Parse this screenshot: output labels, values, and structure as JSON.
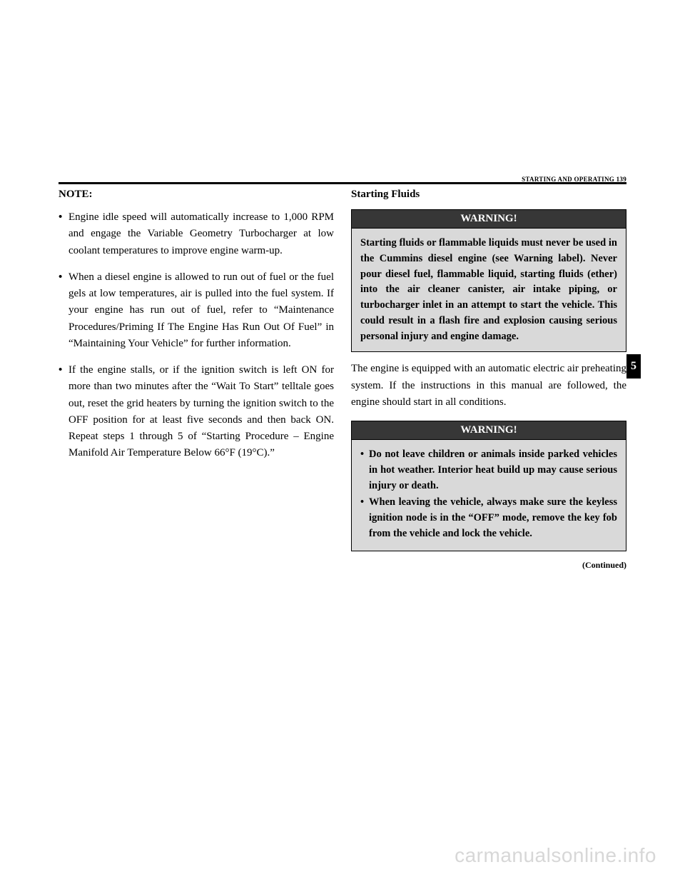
{
  "header": {
    "section_title": "STARTING AND OPERATING   139"
  },
  "tab": {
    "number": "5"
  },
  "left_column": {
    "note_label": "NOTE:",
    "bullets": [
      "Engine idle speed will automatically increase to 1,000 RPM and engage the Variable Geometry Turbocharger at low coolant temperatures to improve engine warm-up.",
      "When a diesel engine is allowed to run out of fuel or the fuel gels at low temperatures, air is pulled into the fuel system. If your engine has run out of fuel, refer to “Maintenance Procedures/Priming If The Engine Has Run Out Of Fuel” in “Maintaining Your Vehicle” for further information.",
      "If the engine stalls, or if the ignition switch is left ON for more than two minutes after the “Wait To Start” telltale goes out, reset the grid heaters by turning the ignition switch to the OFF position for at least five seconds and then back ON. Repeat steps 1 through 5 of “Starting Procedure – Engine Manifold Air Temperature Below 66°F (19°C).”"
    ]
  },
  "right_column": {
    "heading": "Starting Fluids",
    "warning1": {
      "title": "WARNING!",
      "body": "Starting fluids or flammable liquids must never be used in the Cummins diesel engine (see Warning label). Never pour diesel fuel, flammable liquid, starting fluids (ether) into the air cleaner canister, air intake piping, or turbocharger inlet in an attempt to start the vehicle. This could result in a flash fire and explosion causing serious personal injury and engine damage."
    },
    "body_text": "The engine is equipped with an automatic electric air preheating system. If the instructions in this manual are followed, the engine should start in all conditions.",
    "warning2": {
      "title": "WARNING!",
      "bullets": [
        "Do not leave children or animals inside parked vehicles in hot weather. Interior heat build up may cause serious injury or death.",
        "When leaving the vehicle, always make sure the keyless ignition node is in the “OFF” mode, remove the key fob from the vehicle and lock the vehicle."
      ]
    },
    "continued": "(Continued)"
  },
  "watermark": "carmanualsonline.info"
}
